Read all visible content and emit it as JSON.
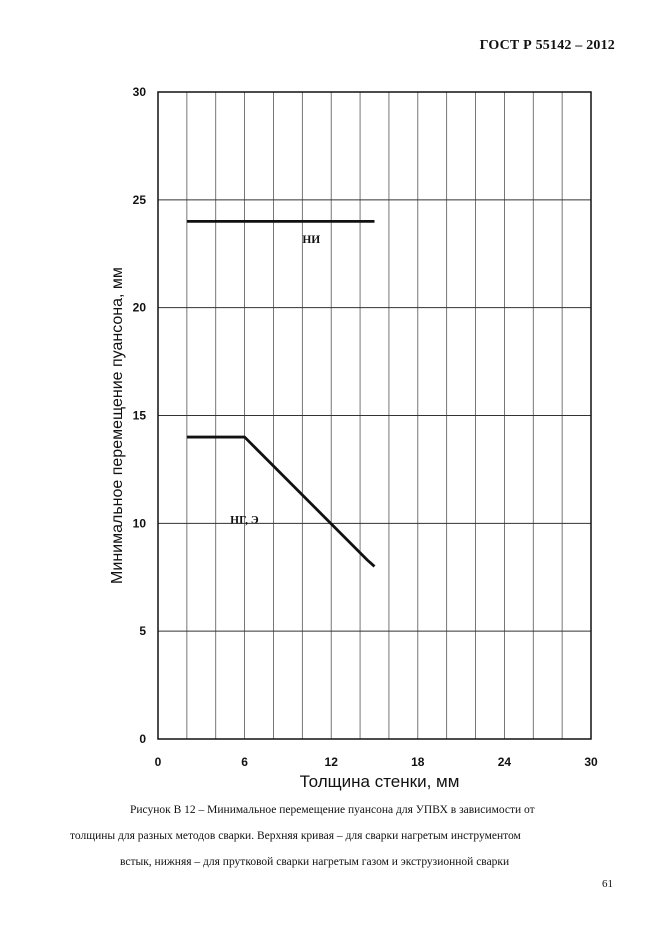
{
  "header": {
    "doc_id": "ГОСТ Р  55142 – 2012"
  },
  "caption": {
    "line1": "Рисунок В 12 –  Минимальное перемещение пуансона  для УПВХ в зависимости от",
    "line2": "толщины для разных методов сварки. Верхняя кривая – для сварки нагретым инструментом",
    "line3": "встык, нижняя – для прутковой сварки нагретым газом и экструзионной сварки"
  },
  "page_number": "61",
  "chart_data": {
    "type": "line",
    "xlabel": "Толщина стенки, мм",
    "ylabel": "Минимальное перемещение пуансона, мм",
    "xlim": [
      0,
      30
    ],
    "ylim": [
      0,
      30
    ],
    "xticks": [
      0,
      6,
      12,
      18,
      24,
      30
    ],
    "yticks": [
      0,
      5,
      10,
      15,
      20,
      25,
      30
    ],
    "minor_x_step": 2,
    "grid": true,
    "series": [
      {
        "name": "НИ",
        "x": [
          2,
          15
        ],
        "y": [
          24,
          24
        ],
        "label_at": [
          10,
          23
        ]
      },
      {
        "name": "НГ, Э",
        "x": [
          2,
          6,
          14.5,
          15
        ],
        "y": [
          14,
          14,
          8.3,
          8
        ],
        "label_at": [
          5,
          10
        ]
      }
    ]
  }
}
